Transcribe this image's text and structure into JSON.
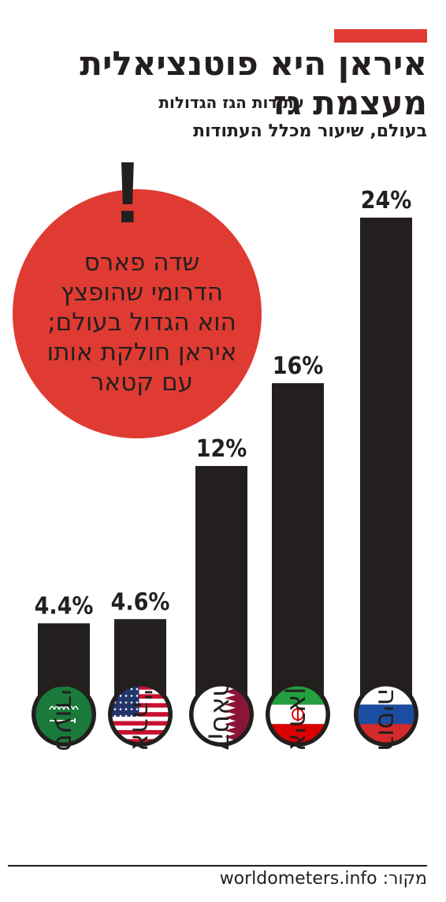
{
  "header": {
    "title_line1": "איראן היא פוטנציאלית",
    "title_line2": "מעצמת גז",
    "subtitle_line1": "עתודות הגז הגדולות",
    "subtitle_line2": "בעולם, שיעור מכלל העתודות"
  },
  "callout": {
    "mark": "!",
    "lines": [
      "שדה פארס",
      "הדרומי שהופצץ",
      "הוא הגדול בעולם;",
      "איראן חולקת אותו",
      "עם קטאר"
    ]
  },
  "footer": {
    "source_label": "מקור:",
    "source_value": "worldometers.info"
  },
  "colors": {
    "accent": "#e03c33",
    "bar": "#231f1e",
    "callout_circle": "#df3b33"
  },
  "chart_data": {
    "type": "bar",
    "categories": [
      "רוסיה",
      "איראן",
      "קטאר",
      "ארה\"ב",
      "סעודיה"
    ],
    "values": [
      24,
      16,
      12,
      4.6,
      4.4
    ],
    "value_labels": [
      "24%",
      "16%",
      "12%",
      "4.6%",
      "4.4%"
    ],
    "flag_icons": [
      "russia-flag-icon",
      "iran-flag-icon",
      "qatar-flag-icon",
      "usa-flag-icon",
      "saudi-flag-icon"
    ],
    "unit": "%",
    "ylim": [
      0,
      24
    ],
    "grid": false,
    "legend": "none"
  }
}
